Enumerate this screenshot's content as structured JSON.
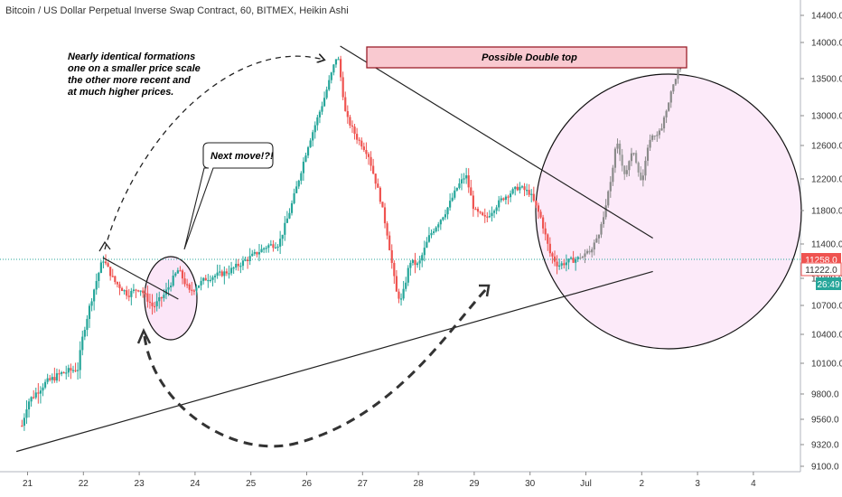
{
  "header": {
    "title": "Bitcoin / US Dollar Perpetual Inverse Swap Contract, 60, BITMEX, Heikin Ashi"
  },
  "annotations": {
    "note_lines": [
      "Nearly identical formations",
      "one on a smaller price scale",
      "the other more recent and",
      "at much higher prices."
    ],
    "next_move": "Next move!?!",
    "double_top": "Possible Double top"
  },
  "colors": {
    "up": "#26a69a",
    "down": "#ef5350",
    "projection": "#8a8a8a",
    "circle_fill": "#fbe6f8",
    "box_fill": "#f9c9d0",
    "box_stroke": "#9a1f2a",
    "last_price_bg": "#ef5350",
    "ma_bg": "#ffffff",
    "timer_bg": "#26a69a"
  },
  "chart_data": {
    "type": "candlestick",
    "y_ticks": [
      "14400.0",
      "14000.0",
      "13500.0",
      "13000.0",
      "12600.0",
      "12200.0",
      "11800.0",
      "11400.0",
      "11000.0",
      "10700.0",
      "10400.0",
      "10100.0",
      "9800.0",
      "9560.0",
      "9320.0",
      "9100.0"
    ],
    "x_ticks": [
      "21",
      "22",
      "23",
      "24",
      "25",
      "26",
      "27",
      "28",
      "29",
      "30",
      "Jul",
      "2",
      "3",
      "4"
    ],
    "price_labels": {
      "last_price": "11258.0",
      "second_price": "11222.0",
      "timer": "26:49"
    },
    "ylim": [
      9050,
      14500
    ],
    "path": [
      [
        20.9,
        9500
      ],
      [
        21.0,
        9720
      ],
      [
        21.3,
        9900
      ],
      [
        21.6,
        10000
      ],
      [
        21.9,
        10050
      ],
      [
        22.0,
        10420
      ],
      [
        22.2,
        10900
      ],
      [
        22.35,
        11230
      ],
      [
        22.55,
        10970
      ],
      [
        22.8,
        10820
      ],
      [
        23.0,
        10900
      ],
      [
        23.25,
        10680
      ],
      [
        23.45,
        10820
      ],
      [
        23.7,
        11100
      ],
      [
        23.9,
        10850
      ],
      [
        24.2,
        11000
      ],
      [
        24.6,
        11080
      ],
      [
        25.0,
        11250
      ],
      [
        25.3,
        11380
      ],
      [
        25.5,
        11400
      ],
      [
        25.7,
        11800
      ],
      [
        25.9,
        12300
      ],
      [
        26.0,
        12550
      ],
      [
        26.3,
        13200
      ],
      [
        26.55,
        13850
      ],
      [
        26.7,
        13000
      ],
      [
        26.9,
        12700
      ],
      [
        27.1,
        12500
      ],
      [
        27.3,
        12000
      ],
      [
        27.45,
        11500
      ],
      [
        27.6,
        10850
      ],
      [
        27.7,
        10750
      ],
      [
        27.85,
        11200
      ],
      [
        28.0,
        11150
      ],
      [
        28.2,
        11500
      ],
      [
        28.5,
        11800
      ],
      [
        28.7,
        12100
      ],
      [
        28.85,
        12250
      ],
      [
        29.0,
        11800
      ],
      [
        29.2,
        11700
      ],
      [
        29.5,
        11950
      ],
      [
        29.8,
        12100
      ],
      [
        30.0,
        12020
      ],
      [
        30.2,
        11700
      ],
      [
        30.35,
        11300
      ],
      [
        30.5,
        11150
      ],
      [
        30.7,
        11200
      ],
      [
        30.9,
        11240
      ]
    ],
    "projection": [
      [
        30.9,
        11240
      ],
      [
        31.1,
        11320
      ],
      [
        31.3,
        11650
      ],
      [
        31.45,
        12200
      ],
      [
        31.55,
        12650
      ],
      [
        31.7,
        12250
      ],
      [
        31.85,
        12550
      ],
      [
        32.0,
        12150
      ],
      [
        32.15,
        12700
      ],
      [
        32.35,
        12800
      ],
      [
        32.5,
        13250
      ],
      [
        32.6,
        13500
      ],
      [
        32.7,
        13720
      ]
    ],
    "lines": [
      {
        "name": "lower-trendline",
        "from": [
          20.8,
          9250
        ],
        "to": [
          32.2,
          11080
        ]
      },
      {
        "name": "upper-trendline",
        "from": [
          26.6,
          13950
        ],
        "to": [
          32.2,
          11470
        ]
      },
      {
        "name": "small-trendline",
        "from": [
          22.35,
          11240
        ],
        "to": [
          23.7,
          10770
        ]
      }
    ]
  }
}
